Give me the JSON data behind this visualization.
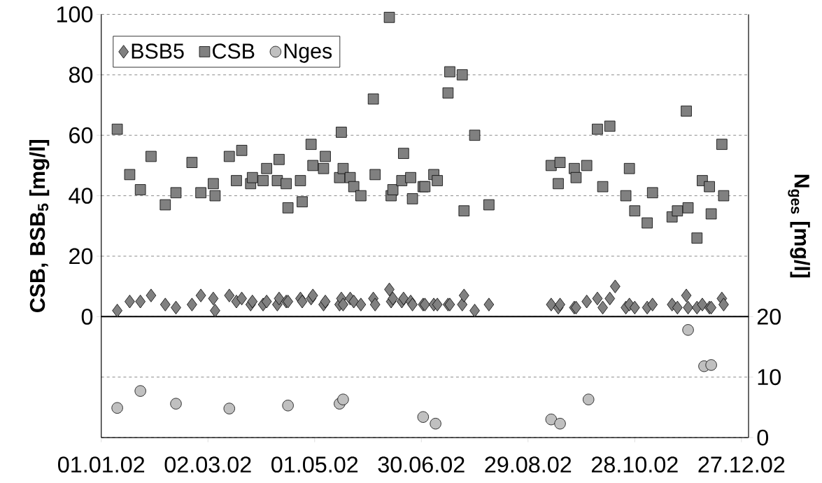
{
  "chart_data": {
    "type": "scatter",
    "ylabel": "CSB, BSB$_{5}$ [mg/l]",
    "y2label": "N$_{ges}$ [mg/l]",
    "series": [
      {
        "name": "BSB5",
        "color": "#808080",
        "marker": "diamond",
        "x": [
          "2002-01-10",
          "2002-01-17",
          "2002-01-23",
          "2002-01-29",
          "2002-02-06",
          "2002-02-12",
          "2002-02-21",
          "2002-02-26",
          "2002-03-05",
          "2002-03-06",
          "2002-03-14",
          "2002-03-18",
          "2002-03-21",
          "2002-03-26",
          "2002-03-27",
          "2002-04-02",
          "2002-04-04",
          "2002-04-10",
          "2002-04-11",
          "2002-04-15",
          "2002-04-16",
          "2002-04-23",
          "2002-04-24",
          "2002-04-29",
          "2002-04-30",
          "2002-05-06",
          "2002-05-07",
          "2002-05-15",
          "2002-05-16",
          "2002-05-17",
          "2002-05-21",
          "2002-05-23",
          "2002-05-27",
          "2002-06-03",
          "2002-06-04",
          "2002-06-12",
          "2002-06-13",
          "2002-06-14",
          "2002-06-19",
          "2002-06-20",
          "2002-06-24",
          "2002-06-25",
          "2002-07-01",
          "2002-07-02",
          "2002-07-07",
          "2002-07-09",
          "2002-07-15",
          "2002-07-16",
          "2002-07-23",
          "2002-07-24",
          "2002-07-30",
          "2002-08-07",
          "2002-09-11",
          "2002-09-15",
          "2002-09-16",
          "2002-09-24",
          "2002-09-25",
          "2002-10-01",
          "2002-10-07",
          "2002-10-10",
          "2002-10-14",
          "2002-10-17",
          "2002-10-23",
          "2002-10-25",
          "2002-10-28",
          "2002-11-04",
          "2002-11-07",
          "2002-11-18",
          "2002-11-21",
          "2002-11-26",
          "2002-11-27",
          "2002-12-02",
          "2002-12-05",
          "2002-12-09",
          "2002-12-10",
          "2002-12-16",
          "2002-12-17"
        ],
        "values": [
          2,
          5,
          5,
          7,
          4,
          3,
          4,
          7,
          6,
          2,
          7,
          5,
          6,
          4,
          5,
          4,
          5,
          4,
          6,
          5,
          5,
          6,
          5,
          6,
          7,
          4,
          5,
          4,
          6,
          4,
          6,
          5,
          4,
          6,
          4,
          9,
          5,
          6,
          5,
          6,
          5,
          4,
          4,
          4,
          4,
          4,
          4,
          4,
          4,
          7,
          2,
          4,
          4,
          3,
          4,
          3,
          3,
          5,
          6,
          3,
          6,
          10,
          3,
          4,
          3,
          3,
          4,
          4,
          3,
          7,
          3,
          3,
          4,
          3,
          3,
          6,
          4
        ]
      },
      {
        "name": "CSB",
        "color": "#808080",
        "marker": "square",
        "x": [
          "2002-01-10",
          "2002-01-17",
          "2002-01-23",
          "2002-01-29",
          "2002-02-06",
          "2002-02-12",
          "2002-02-21",
          "2002-02-26",
          "2002-03-05",
          "2002-03-06",
          "2002-03-14",
          "2002-03-18",
          "2002-03-21",
          "2002-03-26",
          "2002-03-27",
          "2002-04-02",
          "2002-04-04",
          "2002-04-10",
          "2002-04-11",
          "2002-04-15",
          "2002-04-16",
          "2002-04-23",
          "2002-04-24",
          "2002-04-29",
          "2002-04-30",
          "2002-05-06",
          "2002-05-07",
          "2002-05-15",
          "2002-05-16",
          "2002-05-17",
          "2002-05-21",
          "2002-05-23",
          "2002-05-27",
          "2002-06-03",
          "2002-06-04",
          "2002-06-12",
          "2002-06-13",
          "2002-06-14",
          "2002-06-19",
          "2002-06-20",
          "2002-06-24",
          "2002-06-25",
          "2002-07-01",
          "2002-07-02",
          "2002-07-07",
          "2002-07-09",
          "2002-07-15",
          "2002-07-16",
          "2002-07-23",
          "2002-07-24",
          "2002-07-30",
          "2002-08-07",
          "2002-09-11",
          "2002-09-15",
          "2002-09-16",
          "2002-09-24",
          "2002-09-25",
          "2002-10-01",
          "2002-10-07",
          "2002-10-10",
          "2002-10-14",
          "2002-10-23",
          "2002-10-25",
          "2002-10-28",
          "2002-11-04",
          "2002-11-07",
          "2002-11-18",
          "2002-11-21",
          "2002-11-26",
          "2002-11-27",
          "2002-12-02",
          "2002-12-05",
          "2002-12-09",
          "2002-12-10",
          "2002-12-16",
          "2002-12-17"
        ],
        "values": [
          62,
          47,
          42,
          53,
          37,
          41,
          51,
          41,
          44,
          40,
          53,
          45,
          55,
          44,
          46,
          45,
          49,
          45,
          52,
          44,
          36,
          45,
          38,
          57,
          50,
          49,
          53,
          46,
          61,
          49,
          46,
          43,
          40,
          72,
          47,
          99,
          40,
          42,
          45,
          54,
          46,
          39,
          43,
          43,
          47,
          45,
          74,
          81,
          80,
          35,
          60,
          37,
          50,
          44,
          51,
          49,
          46,
          50,
          62,
          43,
          63,
          40,
          49,
          35,
          31,
          41,
          33,
          35,
          68,
          36,
          26,
          45,
          43,
          34,
          57,
          40
        ]
      },
      {
        "name": "Nges",
        "color": "#c0c0c0",
        "marker": "circle",
        "axis": "y2",
        "x": [
          "2002-01-10",
          "2002-01-23",
          "2002-02-12",
          "2002-03-14",
          "2002-04-16",
          "2002-05-15",
          "2002-05-17",
          "2002-07-01",
          "2002-07-08",
          "2002-09-11",
          "2002-09-16",
          "2002-10-02",
          "2002-11-27",
          "2002-12-06",
          "2002-12-10"
        ],
        "values": [
          4.9,
          7.7,
          5.6,
          4.8,
          5.3,
          5.6,
          6.3,
          3.4,
          2.3,
          3.0,
          2.3,
          6.3,
          17.8,
          11.8,
          12.0
        ]
      }
    ],
    "xlim": [
      "2002-01-01",
      "2002-12-31"
    ],
    "xticks": [
      {
        "value": "2002-01-01",
        "label": "01.01.02"
      },
      {
        "value": "2002-03-02",
        "label": "02.03.02"
      },
      {
        "value": "2002-05-01",
        "label": "01.05.02"
      },
      {
        "value": "2002-06-30",
        "label": "30.06.02"
      },
      {
        "value": "2002-08-29",
        "label": "29.08.02"
      },
      {
        "value": "2002-10-28",
        "label": "28.10.02"
      },
      {
        "value": "2002-12-27",
        "label": "27.12.02"
      }
    ],
    "ylim": [
      -40,
      100
    ],
    "yticks": [
      0,
      20,
      40,
      60,
      80,
      100
    ],
    "y2lim": [
      0,
      70
    ],
    "y2ticks": [
      0,
      10,
      20
    ],
    "grid": "y",
    "legend": "top left",
    "ref_lines": [
      {
        "axis": "y",
        "value": 0,
        "color": "#000000",
        "line_style": "solid"
      }
    ]
  }
}
